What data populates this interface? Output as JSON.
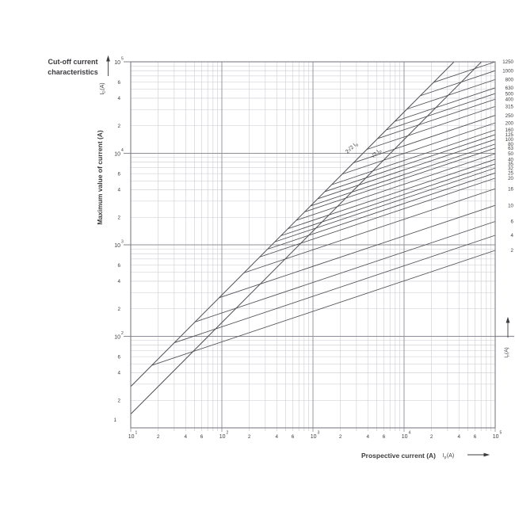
{
  "header": {
    "title_line1": "Cut-off current",
    "title_line2": "characteristics"
  },
  "chart_data": {
    "type": "line",
    "scale": "log-log",
    "title": "Cut-off current characteristics",
    "xlabel": "Prospective current (A)",
    "ylabel": "Maximum value of current (A)",
    "xlim": [
      10,
      100000
    ],
    "ylim": [
      10,
      100000
    ],
    "grid": "log minor + decade lines",
    "legend_position": "right-edge curve labels",
    "x_axis": {
      "symbol": {
        "base": "I",
        "sub": "p",
        "unit": "(A)"
      },
      "decade_exponents": [
        "1",
        "2",
        "3",
        "4",
        "5"
      ],
      "decade_mantissa": "10",
      "minor_tick_labels": [
        "2",
        "4",
        "6"
      ]
    },
    "y_axis": {
      "symbol": {
        "base": "I",
        "sub": "D",
        "unit": "(A)"
      },
      "decade_exponents": [
        "2",
        "3",
        "4",
        "5"
      ],
      "decade_mantissa": "10",
      "minor_tick_labels": [
        "6",
        "4",
        "2"
      ],
      "bottom_label": "1"
    },
    "right_axis": {
      "symbol": {
        "base": "I",
        "sub": "n",
        "unit": "(A)"
      }
    },
    "reference_lines": [
      {
        "name": "asymmetrical-peak-line",
        "factor": 2.828,
        "label": {
          "text": "2√2 I",
          "sub": "p"
        }
      },
      {
        "name": "symmetrical-peak-line",
        "factor": 1.414,
        "label": {
          "text": "√2 I",
          "sub": "p"
        }
      }
    ],
    "curve_model": {
      "start_on_factor_line": 2.828,
      "slope_log_log": 0.3333,
      "end_at_prospective_A": 100000
    },
    "curves": [
      {
        "rating": "1250",
        "cutoff_at_max_A": 100000
      },
      {
        "rating": "1000",
        "cutoff_at_max_A": 80000
      },
      {
        "rating": "800",
        "cutoff_at_max_A": 64000
      },
      {
        "rating": "630",
        "cutoff_at_max_A": 52000
      },
      {
        "rating": "500",
        "cutoff_at_max_A": 45000
      },
      {
        "rating": "400",
        "cutoff_at_max_A": 39000
      },
      {
        "rating": "315",
        "cutoff_at_max_A": 32500
      },
      {
        "rating": "250",
        "cutoff_at_max_A": 26000
      },
      {
        "rating": "200",
        "cutoff_at_max_A": 21500
      },
      {
        "rating": "160",
        "cutoff_at_max_A": 18000
      },
      {
        "rating": "125",
        "cutoff_at_max_A": 16000
      },
      {
        "rating": "100",
        "cutoff_at_max_A": 14200
      },
      {
        "rating": "80",
        "cutoff_at_max_A": 12600
      },
      {
        "rating": "63",
        "cutoff_at_max_A": 11400
      },
      {
        "rating": "50",
        "cutoff_at_max_A": 9900
      },
      {
        "rating": "40",
        "cutoff_at_max_A": 8600
      },
      {
        "rating": "35",
        "cutoff_at_max_A": 7650
      },
      {
        "rating": "32",
        "cutoff_at_max_A": 6900
      },
      {
        "rating": "25",
        "cutoff_at_max_A": 6100
      },
      {
        "rating": "20",
        "cutoff_at_max_A": 5350
      },
      {
        "rating": "16",
        "cutoff_at_max_A": 4100
      },
      {
        "rating": "10",
        "cutoff_at_max_A": 2700
      },
      {
        "rating": "6",
        "cutoff_at_max_A": 1800
      },
      {
        "rating": "4",
        "cutoff_at_max_A": 1270
      },
      {
        "rating": "2",
        "cutoff_at_max_A": 870
      }
    ],
    "colors": {
      "curve": "#4f4f54",
      "grid_minor": "#c9c9d0",
      "grid_major": "#8e8e97",
      "border": "#7c7c85",
      "text": "#3c3c40"
    }
  }
}
